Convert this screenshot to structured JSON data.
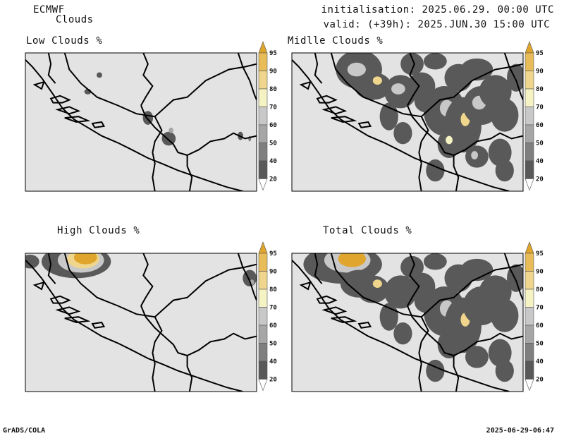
{
  "header": {
    "model": "ECMWF",
    "product": "Clouds",
    "init_line": "initialisation: 2025.06.29. 00:00 UTC",
    "valid_line": "valid: (+39h): 2025.JUN.30 15:00 UTC"
  },
  "panels": [
    {
      "title": "Low Clouds %"
    },
    {
      "title": "Midlle Clouds %"
    },
    {
      "title": "High Clouds %"
    },
    {
      "title": "Total Clouds %"
    }
  ],
  "colorbar": {
    "ticks": [
      "20",
      "40",
      "50",
      "60",
      "70",
      "80",
      "90",
      "95"
    ],
    "colors": [
      "#ffffff",
      "#595959",
      "#7f7f7f",
      "#a6a6a6",
      "#c8c8c8",
      "#f5f2c4",
      "#efd68c",
      "#e8bd59",
      "#e0a52c"
    ]
  },
  "colors": {
    "map_bg": "#e3e3e3",
    "border": "#000000"
  },
  "footer": {
    "left": "GrADS/COLA",
    "right": "2025-06-29-06:47"
  }
}
